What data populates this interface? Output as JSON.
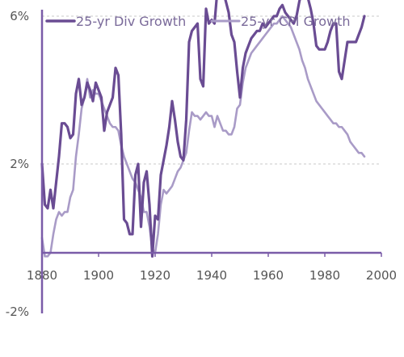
{
  "chart_data": {
    "type": "line",
    "title": "",
    "xlabel": "",
    "ylabel": "",
    "xlim": [
      1880,
      2000
    ],
    "ylim": [
      -2,
      6
    ],
    "x_ticks": [
      1880,
      1900,
      1920,
      1940,
      1960,
      1980,
      2000
    ],
    "x_tick_labels": [
      "1880",
      "1900",
      "1920",
      "1940",
      "1960",
      "1980",
      "2000"
    ],
    "y_ticks": [
      -2,
      2,
      6
    ],
    "y_tick_labels": [
      "-2%",
      "2%",
      "6%"
    ],
    "gridlines": [
      2,
      6
    ],
    "legend_position": "top",
    "series": [
      {
        "name": "25-yr Div Growth",
        "color": "#6a4c93",
        "points": [
          [
            1880,
            2.0
          ],
          [
            1881,
            0.9
          ],
          [
            1882,
            0.8
          ],
          [
            1883,
            1.3
          ],
          [
            1884,
            0.8
          ],
          [
            1885,
            1.5
          ],
          [
            1886,
            2.2
          ],
          [
            1887,
            3.1
          ],
          [
            1888,
            3.1
          ],
          [
            1889,
            3.0
          ],
          [
            1890,
            2.7
          ],
          [
            1891,
            2.8
          ],
          [
            1892,
            3.9
          ],
          [
            1893,
            4.3
          ],
          [
            1894,
            3.6
          ],
          [
            1895,
            3.8
          ],
          [
            1896,
            4.2
          ],
          [
            1897,
            4.0
          ],
          [
            1898,
            3.7
          ],
          [
            1899,
            4.2
          ],
          [
            1900,
            4.0
          ],
          [
            1901,
            3.8
          ],
          [
            1902,
            2.9
          ],
          [
            1903,
            3.4
          ],
          [
            1904,
            3.6
          ],
          [
            1905,
            3.8
          ],
          [
            1906,
            4.6
          ],
          [
            1907,
            4.4
          ],
          [
            1908,
            2.8
          ],
          [
            1909,
            0.5
          ],
          [
            1910,
            0.4
          ],
          [
            1911,
            0.1
          ],
          [
            1912,
            0.1
          ],
          [
            1913,
            1.7
          ],
          [
            1914,
            2.0
          ],
          [
            1915,
            0.3
          ],
          [
            1916,
            1.5
          ],
          [
            1917,
            1.8
          ],
          [
            1918,
            0.9
          ],
          [
            1919,
            -0.5
          ],
          [
            1920,
            0.6
          ],
          [
            1921,
            0.5
          ],
          [
            1922,
            1.7
          ],
          [
            1923,
            2.1
          ],
          [
            1924,
            2.5
          ],
          [
            1925,
            3.0
          ],
          [
            1926,
            3.7
          ],
          [
            1927,
            3.2
          ],
          [
            1928,
            2.6
          ],
          [
            1929,
            2.2
          ],
          [
            1930,
            2.1
          ],
          [
            1931,
            3.2
          ],
          [
            1932,
            5.3
          ],
          [
            1933,
            5.6
          ],
          [
            1934,
            5.7
          ],
          [
            1935,
            5.8
          ],
          [
            1936,
            4.3
          ],
          [
            1937,
            4.1
          ],
          [
            1938,
            6.2
          ],
          [
            1939,
            5.8
          ],
          [
            1940,
            5.9
          ],
          [
            1941,
            5.8
          ],
          [
            1942,
            6.7
          ],
          [
            1943,
            6.8
          ],
          [
            1944,
            6.7
          ],
          [
            1945,
            6.4
          ],
          [
            1946,
            6.1
          ],
          [
            1947,
            5.5
          ],
          [
            1948,
            5.3
          ],
          [
            1949,
            4.5
          ],
          [
            1950,
            3.8
          ],
          [
            1951,
            4.6
          ],
          [
            1952,
            5.0
          ],
          [
            1953,
            5.2
          ],
          [
            1954,
            5.4
          ],
          [
            1955,
            5.5
          ],
          [
            1956,
            5.6
          ],
          [
            1957,
            5.6
          ],
          [
            1958,
            5.8
          ],
          [
            1959,
            5.7
          ],
          [
            1960,
            5.8
          ],
          [
            1961,
            5.9
          ],
          [
            1962,
            6.0
          ],
          [
            1963,
            6.0
          ],
          [
            1964,
            6.2
          ],
          [
            1965,
            6.3
          ],
          [
            1966,
            6.1
          ],
          [
            1967,
            6.0
          ],
          [
            1968,
            5.9
          ],
          [
            1969,
            5.8
          ],
          [
            1970,
            6.0
          ],
          [
            1971,
            6.4
          ],
          [
            1972,
            6.7
          ],
          [
            1973,
            6.7
          ],
          [
            1974,
            6.5
          ],
          [
            1975,
            6.2
          ],
          [
            1976,
            5.8
          ],
          [
            1977,
            5.2
          ],
          [
            1978,
            5.1
          ],
          [
            1979,
            5.1
          ],
          [
            1980,
            5.1
          ],
          [
            1981,
            5.3
          ],
          [
            1982,
            5.6
          ],
          [
            1983,
            5.8
          ],
          [
            1984,
            5.8
          ],
          [
            1985,
            4.5
          ],
          [
            1986,
            4.3
          ],
          [
            1987,
            4.8
          ],
          [
            1988,
            5.3
          ],
          [
            1989,
            5.3
          ],
          [
            1990,
            5.3
          ],
          [
            1991,
            5.3
          ],
          [
            1992,
            5.5
          ],
          [
            1993,
            5.7
          ],
          [
            1994,
            6.0
          ]
        ]
      },
      {
        "name": "25-yr CPI Growth",
        "color": "#a99bc7",
        "points": [
          [
            1880,
            0.0
          ],
          [
            1881,
            -0.5
          ],
          [
            1882,
            -0.5
          ],
          [
            1883,
            -0.4
          ],
          [
            1884,
            0.1
          ],
          [
            1885,
            0.5
          ],
          [
            1886,
            0.7
          ],
          [
            1887,
            0.6
          ],
          [
            1888,
            0.7
          ],
          [
            1889,
            0.7
          ],
          [
            1890,
            1.1
          ],
          [
            1891,
            1.3
          ],
          [
            1892,
            2.2
          ],
          [
            1893,
            2.8
          ],
          [
            1894,
            3.5
          ],
          [
            1895,
            3.8
          ],
          [
            1896,
            4.3
          ],
          [
            1897,
            3.8
          ],
          [
            1898,
            4.0
          ],
          [
            1899,
            3.9
          ],
          [
            1900,
            3.9
          ],
          [
            1901,
            3.7
          ],
          [
            1902,
            3.5
          ],
          [
            1903,
            3.3
          ],
          [
            1904,
            3.1
          ],
          [
            1905,
            3.0
          ],
          [
            1906,
            3.0
          ],
          [
            1907,
            2.9
          ],
          [
            1908,
            2.5
          ],
          [
            1909,
            2.2
          ],
          [
            1910,
            2.0
          ],
          [
            1911,
            1.8
          ],
          [
            1912,
            1.6
          ],
          [
            1913,
            1.5
          ],
          [
            1914,
            1.3
          ],
          [
            1915,
            1.1
          ],
          [
            1916,
            0.7
          ],
          [
            1917,
            0.7
          ],
          [
            1918,
            0.3
          ],
          [
            1919,
            -0.3
          ],
          [
            1920,
            -0.4
          ],
          [
            1921,
            0.1
          ],
          [
            1922,
            0.9
          ],
          [
            1923,
            1.3
          ],
          [
            1924,
            1.2
          ],
          [
            1925,
            1.3
          ],
          [
            1926,
            1.4
          ],
          [
            1927,
            1.6
          ],
          [
            1928,
            1.8
          ],
          [
            1929,
            1.9
          ],
          [
            1930,
            2.1
          ],
          [
            1931,
            2.3
          ],
          [
            1932,
            2.9
          ],
          [
            1933,
            3.4
          ],
          [
            1934,
            3.3
          ],
          [
            1935,
            3.3
          ],
          [
            1936,
            3.2
          ],
          [
            1937,
            3.3
          ],
          [
            1938,
            3.4
          ],
          [
            1939,
            3.3
          ],
          [
            1940,
            3.3
          ],
          [
            1941,
            3.0
          ],
          [
            1942,
            3.3
          ],
          [
            1943,
            3.1
          ],
          [
            1944,
            2.9
          ],
          [
            1945,
            2.9
          ],
          [
            1946,
            2.8
          ],
          [
            1947,
            2.8
          ],
          [
            1948,
            3.0
          ],
          [
            1949,
            3.5
          ],
          [
            1950,
            3.6
          ],
          [
            1951,
            4.2
          ],
          [
            1952,
            4.6
          ],
          [
            1953,
            4.8
          ],
          [
            1954,
            5.0
          ],
          [
            1955,
            5.1
          ],
          [
            1956,
            5.2
          ],
          [
            1957,
            5.3
          ],
          [
            1958,
            5.4
          ],
          [
            1959,
            5.5
          ],
          [
            1960,
            5.6
          ],
          [
            1961,
            5.7
          ],
          [
            1962,
            5.8
          ],
          [
            1963,
            5.8
          ],
          [
            1964,
            5.9
          ],
          [
            1965,
            6.0
          ],
          [
            1966,
            5.9
          ],
          [
            1967,
            5.8
          ],
          [
            1968,
            5.7
          ],
          [
            1969,
            5.5
          ],
          [
            1970,
            5.3
          ],
          [
            1971,
            5.1
          ],
          [
            1972,
            4.8
          ],
          [
            1973,
            4.6
          ],
          [
            1974,
            4.3
          ],
          [
            1975,
            4.1
          ],
          [
            1976,
            3.9
          ],
          [
            1977,
            3.7
          ],
          [
            1978,
            3.6
          ],
          [
            1979,
            3.5
          ],
          [
            1980,
            3.4
          ],
          [
            1981,
            3.3
          ],
          [
            1982,
            3.2
          ],
          [
            1983,
            3.1
          ],
          [
            1984,
            3.1
          ],
          [
            1985,
            3.0
          ],
          [
            1986,
            3.0
          ],
          [
            1987,
            2.9
          ],
          [
            1988,
            2.8
          ],
          [
            1989,
            2.6
          ],
          [
            1990,
            2.5
          ],
          [
            1991,
            2.4
          ],
          [
            1992,
            2.3
          ],
          [
            1993,
            2.3
          ],
          [
            1994,
            2.2
          ]
        ]
      }
    ]
  }
}
